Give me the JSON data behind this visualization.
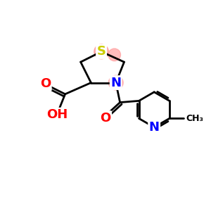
{
  "bg_color": "#ffffff",
  "atom_colors": {
    "S": "#cccc00",
    "N": "#0000ff",
    "O": "#ff0000",
    "C": "#000000"
  },
  "bond_color": "#000000",
  "highlight_color": "#ff9999",
  "figsize": [
    3.0,
    3.0
  ],
  "dpi": 100,
  "xlim": [
    0,
    10
  ],
  "ylim": [
    0,
    10
  ]
}
